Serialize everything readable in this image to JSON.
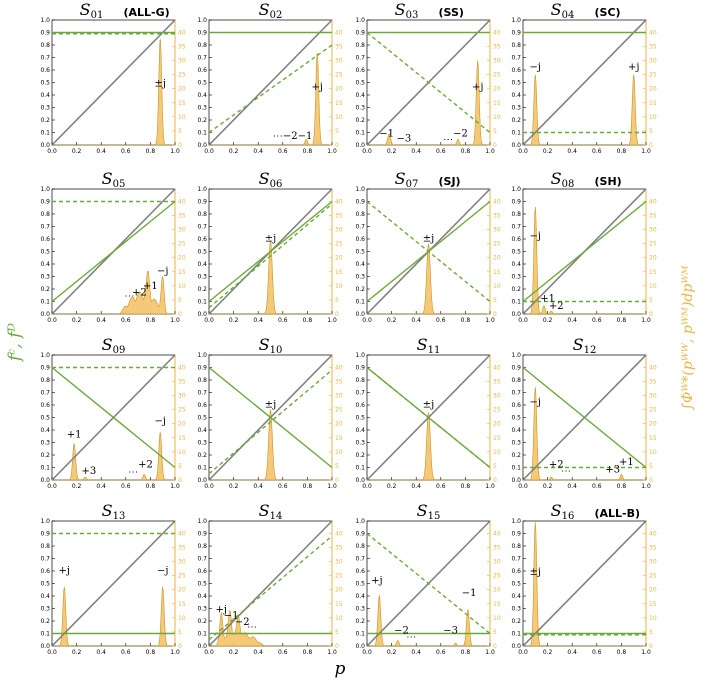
{
  "labels": {
    "ylabel_left": "fᶜ, fᴰ",
    "ylabel_right": "∫Φᵂ*(pᵂᵂ, pᵂᴹ)dpᵂᴹ",
    "xlabel": "p"
  },
  "colors": {
    "coop_line": "#6aaa3a",
    "defect_line": "#6aaa3a",
    "diagonal": "#808080",
    "density_fill": "#f5c36b",
    "density_stroke": "#c8951e",
    "right_axis": "#e9b546",
    "left_label": "#6aaa3a"
  },
  "chart_data": [
    {
      "type": "line",
      "title": "S",
      "sub": "01",
      "tag": "(ALL-G)",
      "coop": [
        0.9,
        0.9
      ],
      "defect": [
        0.89,
        0.89
      ],
      "density": [
        {
          "type": "peak",
          "c": 0.88,
          "h": 38,
          "w": 0.012
        }
      ],
      "annotations": [
        {
          "text": "±j",
          "x": 0.88,
          "y": 0.47
        }
      ]
    },
    {
      "type": "line",
      "title": "S",
      "sub": "02",
      "tag": "",
      "coop": [
        0.9,
        0.9
      ],
      "defect": [
        0.1,
        0.8
      ],
      "density": [
        {
          "type": "peak",
          "c": 0.88,
          "h": 33,
          "w": 0.012
        },
        {
          "type": "peak",
          "c": 0.79,
          "h": 2,
          "w": 0.01
        }
      ],
      "annotations": [
        {
          "text": "+j",
          "x": 0.88,
          "y": 0.44
        },
        {
          "text": "⋯−2−1",
          "x": 0.68,
          "y": 0.05
        }
      ]
    },
    {
      "type": "line",
      "title": "S",
      "sub": "03",
      "tag": "(SS)",
      "coop": [
        0.9,
        0.9
      ],
      "defect": [
        0.9,
        0.1
      ],
      "density": [
        {
          "type": "peak",
          "c": 0.9,
          "h": 30,
          "w": 0.012
        },
        {
          "type": "peak",
          "c": 0.18,
          "h": 4,
          "w": 0.012
        },
        {
          "type": "peak",
          "c": 0.74,
          "h": 2,
          "w": 0.01
        }
      ],
      "annotations": [
        {
          "text": "+j",
          "x": 0.9,
          "y": 0.44
        },
        {
          "text": "−1",
          "x": 0.16,
          "y": 0.07
        },
        {
          "text": "−3",
          "x": 0.3,
          "y": 0.03
        },
        {
          "text": "⋯",
          "x": 0.66,
          "y": 0.02
        },
        {
          "text": "−2",
          "x": 0.76,
          "y": 0.07
        }
      ]
    },
    {
      "type": "line",
      "title": "S",
      "sub": "04",
      "tag": "(SC)",
      "coop": [
        0.9,
        0.9
      ],
      "defect": [
        0.1,
        0.1
      ],
      "density": [
        {
          "type": "peak",
          "c": 0.1,
          "h": 25,
          "w": 0.012
        },
        {
          "type": "peak",
          "c": 0.9,
          "h": 25,
          "w": 0.012
        }
      ],
      "annotations": [
        {
          "text": "−j",
          "x": 0.1,
          "y": 0.6
        },
        {
          "text": "+j",
          "x": 0.9,
          "y": 0.6
        }
      ]
    },
    {
      "type": "line",
      "title": "S",
      "sub": "05",
      "tag": "",
      "coop": [
        0.1,
        0.9
      ],
      "defect": [
        0.9,
        0.9
      ],
      "density": [
        {
          "type": "hump",
          "a": 0.55,
          "b": 0.92,
          "h": 8
        },
        {
          "type": "peak",
          "c": 0.9,
          "h": 12,
          "w": 0.012
        },
        {
          "type": "peak",
          "c": 0.78,
          "h": 8,
          "w": 0.012
        }
      ],
      "annotations": [
        {
          "text": "−j",
          "x": 0.9,
          "y": 0.32
        },
        {
          "text": "+1",
          "x": 0.8,
          "y": 0.2
        },
        {
          "text": "+2",
          "x": 0.71,
          "y": 0.15
        },
        {
          "text": "⋯",
          "x": 0.63,
          "y": 0.12
        }
      ]
    },
    {
      "type": "line",
      "title": "S",
      "sub": "06",
      "tag": "",
      "coop": [
        0.1,
        0.9
      ],
      "defect": [
        0.05,
        0.88
      ],
      "density": [
        {
          "type": "peak",
          "c": 0.5,
          "h": 26,
          "w": 0.015
        }
      ],
      "annotations": [
        {
          "text": "±j",
          "x": 0.5,
          "y": 0.58
        }
      ]
    },
    {
      "type": "line",
      "title": "S",
      "sub": "07",
      "tag": "(SJ)",
      "coop": [
        0.1,
        0.9
      ],
      "defect": [
        0.9,
        0.1
      ],
      "density": [
        {
          "type": "peak",
          "c": 0.5,
          "h": 25,
          "w": 0.015
        }
      ],
      "annotations": [
        {
          "text": "±j",
          "x": 0.5,
          "y": 0.58
        }
      ]
    },
    {
      "type": "line",
      "title": "S",
      "sub": "08",
      "tag": "(SH)",
      "coop": [
        0.1,
        0.9
      ],
      "defect": [
        0.1,
        0.1
      ],
      "density": [
        {
          "type": "peak",
          "c": 0.1,
          "h": 38,
          "w": 0.012
        },
        {
          "type": "peak",
          "c": 0.17,
          "h": 3,
          "w": 0.01
        },
        {
          "type": "peak",
          "c": 0.23,
          "h": 1,
          "w": 0.01
        }
      ],
      "annotations": [
        {
          "text": "−j",
          "x": 0.1,
          "y": 0.6
        },
        {
          "text": "+1",
          "x": 0.2,
          "y": 0.1
        },
        {
          "text": "+2",
          "x": 0.27,
          "y": 0.04
        }
      ]
    },
    {
      "type": "line",
      "title": "S",
      "sub": "09",
      "tag": "",
      "coop": [
        0.9,
        0.1
      ],
      "defect": [
        0.9,
        0.9
      ],
      "density": [
        {
          "type": "peak",
          "c": 0.18,
          "h": 13,
          "w": 0.012
        },
        {
          "type": "peak",
          "c": 0.88,
          "h": 17,
          "w": 0.012
        },
        {
          "type": "peak",
          "c": 0.75,
          "h": 2,
          "w": 0.01
        },
        {
          "type": "peak",
          "c": 0.27,
          "h": 1,
          "w": 0.01
        }
      ],
      "annotations": [
        {
          "text": "+1",
          "x": 0.18,
          "y": 0.34
        },
        {
          "text": "−j",
          "x": 0.88,
          "y": 0.45
        },
        {
          "text": "+3",
          "x": 0.3,
          "y": 0.05
        },
        {
          "text": "+2",
          "x": 0.76,
          "y": 0.1
        },
        {
          "text": "⋯",
          "x": 0.66,
          "y": 0.04
        }
      ]
    },
    {
      "type": "line",
      "title": "S",
      "sub": "10",
      "tag": "",
      "coop": [
        0.9,
        0.1
      ],
      "defect": [
        0.05,
        0.88
      ],
      "density": [
        {
          "type": "peak",
          "c": 0.5,
          "h": 25,
          "w": 0.015
        }
      ],
      "annotations": [
        {
          "text": "±j",
          "x": 0.5,
          "y": 0.58
        }
      ]
    },
    {
      "type": "line",
      "title": "S",
      "sub": "11",
      "tag": "",
      "coop": [
        0.9,
        0.1
      ],
      "defect": [
        0.9,
        0.1
      ],
      "density": [
        {
          "type": "peak",
          "c": 0.5,
          "h": 24,
          "w": 0.015
        }
      ],
      "annotations": [
        {
          "text": "±j",
          "x": 0.5,
          "y": 0.58
        }
      ]
    },
    {
      "type": "line",
      "title": "S",
      "sub": "12",
      "tag": "",
      "coop": [
        0.9,
        0.1
      ],
      "defect": [
        0.1,
        0.1
      ],
      "density": [
        {
          "type": "peak",
          "c": 0.1,
          "h": 33,
          "w": 0.012
        },
        {
          "type": "peak",
          "c": 0.23,
          "h": 1,
          "w": 0.01
        },
        {
          "type": "peak",
          "c": 0.8,
          "h": 2,
          "w": 0.01
        }
      ],
      "annotations": [
        {
          "text": "−j",
          "x": 0.1,
          "y": 0.6
        },
        {
          "text": "+2",
          "x": 0.27,
          "y": 0.1
        },
        {
          "text": "⋯",
          "x": 0.35,
          "y": 0.05
        },
        {
          "text": "+1",
          "x": 0.84,
          "y": 0.12
        },
        {
          "text": "+3",
          "x": 0.73,
          "y": 0.06
        }
      ]
    },
    {
      "type": "line",
      "title": "S",
      "sub": "13",
      "tag": "",
      "coop": [
        0.1,
        0.1
      ],
      "defect": [
        0.9,
        0.9
      ],
      "density": [
        {
          "type": "peak",
          "c": 0.1,
          "h": 21,
          "w": 0.012
        },
        {
          "type": "peak",
          "c": 0.9,
          "h": 21,
          "w": 0.012
        }
      ],
      "annotations": [
        {
          "text": "+j",
          "x": 0.1,
          "y": 0.58
        },
        {
          "text": "−j",
          "x": 0.9,
          "y": 0.58
        }
      ]
    },
    {
      "type": "line",
      "title": "S",
      "sub": "14",
      "tag": "",
      "coop": [
        0.1,
        0.1
      ],
      "defect": [
        0.05,
        0.88
      ],
      "density": [
        {
          "type": "hump",
          "a": 0.05,
          "b": 0.45,
          "h": 5
        },
        {
          "type": "peak",
          "c": 0.1,
          "h": 10,
          "w": 0.012
        },
        {
          "type": "peak",
          "c": 0.17,
          "h": 9,
          "w": 0.012
        },
        {
          "type": "peak",
          "c": 0.24,
          "h": 6,
          "w": 0.012
        }
      ],
      "annotations": [
        {
          "text": "+j",
          "x": 0.1,
          "y": 0.27
        },
        {
          "text": "−1",
          "x": 0.18,
          "y": 0.22
        },
        {
          "text": "−2",
          "x": 0.27,
          "y": 0.17
        },
        {
          "text": "⋯",
          "x": 0.35,
          "y": 0.13
        }
      ]
    },
    {
      "type": "line",
      "title": "S",
      "sub": "15",
      "tag": "",
      "coop": [
        0.1,
        0.1
      ],
      "defect": [
        0.9,
        0.1
      ],
      "density": [
        {
          "type": "peak",
          "c": 0.1,
          "h": 18,
          "w": 0.012
        },
        {
          "type": "peak",
          "c": 0.82,
          "h": 13,
          "w": 0.012
        },
        {
          "type": "peak",
          "c": 0.25,
          "h": 2,
          "w": 0.01
        },
        {
          "type": "peak",
          "c": 0.72,
          "h": 1,
          "w": 0.01
        }
      ],
      "annotations": [
        {
          "text": "+j",
          "x": 0.08,
          "y": 0.5
        },
        {
          "text": "−1",
          "x": 0.83,
          "y": 0.4
        },
        {
          "text": "−2",
          "x": 0.28,
          "y": 0.1
        },
        {
          "text": "⋯",
          "x": 0.36,
          "y": 0.05
        },
        {
          "text": "−3",
          "x": 0.68,
          "y": 0.1
        }
      ]
    },
    {
      "type": "line",
      "title": "S",
      "sub": "16",
      "tag": "(ALL-B)",
      "coop": [
        0.1,
        0.1
      ],
      "defect": [
        0.09,
        0.09
      ],
      "density": [
        {
          "type": "peak",
          "c": 0.1,
          "h": 44,
          "w": 0.012
        }
      ],
      "annotations": [
        {
          "text": "±j",
          "x": 0.1,
          "y": 0.57
        }
      ]
    }
  ]
}
